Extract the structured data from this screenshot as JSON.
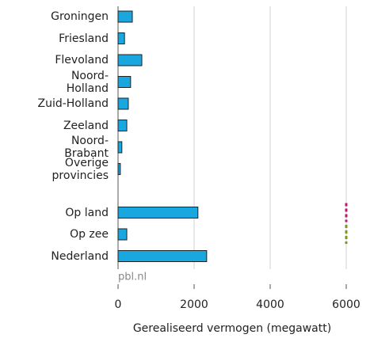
{
  "chart_data": {
    "type": "bar",
    "orientation": "horizontal",
    "categories": [
      "Groningen",
      "Friesland",
      "Flevoland",
      "Noord-Holland",
      "Zuid-Holland",
      "Zeeland",
      "Noord-Brabant",
      "Overige provincies",
      null,
      "Op land",
      "Op zee",
      "Nederland"
    ],
    "values": [
      375,
      170,
      625,
      330,
      270,
      230,
      100,
      60,
      null,
      2100,
      230,
      2330
    ],
    "color": "#1aa7e0",
    "target_values": [
      null,
      null,
      null,
      null,
      null,
      null,
      null,
      null,
      null,
      6000,
      6000,
      null
    ],
    "target_colors": [
      null,
      null,
      null,
      null,
      null,
      null,
      null,
      null,
      null,
      "#c0176a",
      "#7a9a1e",
      null
    ],
    "xlim": [
      0,
      6000
    ],
    "xticks": [
      0,
      2000,
      4000,
      6000
    ],
    "grid": true,
    "xlabel": "Gerealiseerd vermogen (megawatt)",
    "source": "pbl.nl"
  }
}
